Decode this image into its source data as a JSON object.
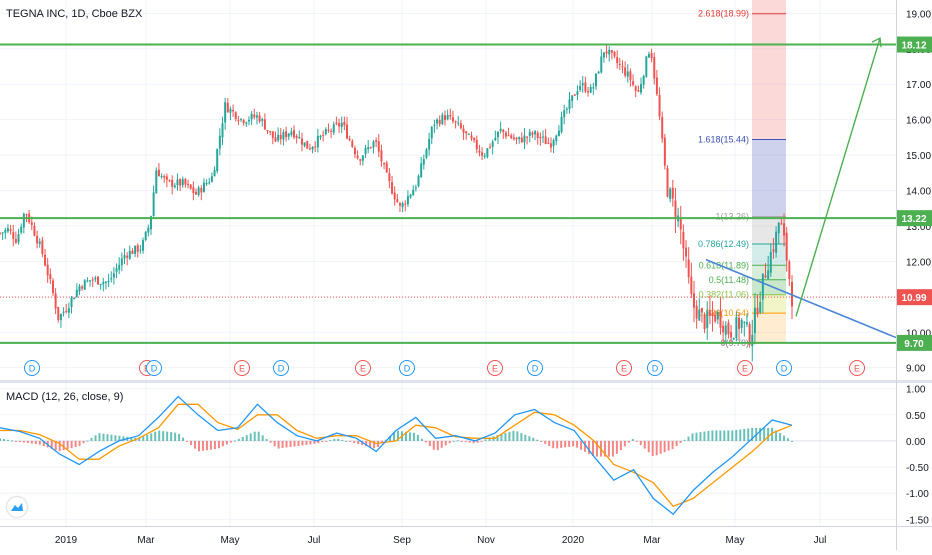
{
  "title": "TEGNA INC, 1D, Cboe BZX",
  "colors": {
    "up": "#26a69a",
    "down": "#ef5350",
    "level": "#4caf50",
    "price": "#ef5350",
    "trend": "#4a86d6",
    "macd": "#2196f3",
    "signal": "#ff9800",
    "fib_upper": "#e53935",
    "fib_618": "#3f51b5"
  },
  "icons": [
    "tradingview-logo-icon",
    "dividend-marker-icon",
    "earnings-marker-icon"
  ],
  "chart_data": [
    {
      "type": "candlestick",
      "title": "TEGNA INC, 1D, Cboe BZX",
      "x_ticks": [
        "2019",
        "Mar",
        "May",
        "Jul",
        "Sep",
        "Nov",
        "2020",
        "Mar",
        "May",
        "Jul"
      ],
      "y_ticks": [
        "9.00",
        "10.00",
        "11.00",
        "12.00",
        "13.00",
        "14.00",
        "15.00",
        "16.00",
        "17.00",
        "18.00",
        "19.00"
      ],
      "ylim": [
        8.85,
        19.25
      ],
      "grid": true,
      "horizontal_levels": [
        {
          "label": "18.12",
          "value": 18.12
        },
        {
          "label": "13.22",
          "value": 13.22
        },
        {
          "label": "9.70",
          "value": 9.7
        }
      ],
      "last_price": {
        "label": "10.99",
        "value": 10.99
      },
      "fib_levels": [
        {
          "label": "2.618(18.99)",
          "value": 18.99
        },
        {
          "label": "1.618(15.44)",
          "value": 15.44
        },
        {
          "label": "1(13.26)",
          "value": 13.26
        },
        {
          "label": "0.786(12.49)",
          "value": 12.49
        },
        {
          "label": "0.618(11.89)",
          "value": 11.89
        },
        {
          "label": "0.5(11.48)",
          "value": 11.48
        },
        {
          "label": "0.382(11.06)",
          "value": 11.06
        },
        {
          "label": "0.236(10.54)",
          "value": 10.54
        },
        {
          "label": "0(9.70)",
          "value": 9.7
        }
      ],
      "markers": [
        "D",
        "E",
        "D",
        "E",
        "D",
        "E",
        "D",
        "E",
        "D",
        "E",
        "D",
        "E",
        "D",
        "E"
      ],
      "price_path": [
        {
          "t": 0.0,
          "v": 12.8
        },
        {
          "t": 0.02,
          "v": 12.9
        },
        {
          "t": 0.04,
          "v": 12.6
        },
        {
          "t": 0.06,
          "v": 13.45
        },
        {
          "t": 0.08,
          "v": 12.9
        },
        {
          "t": 0.1,
          "v": 12.3
        },
        {
          "t": 0.125,
          "v": 11.2
        },
        {
          "t": 0.14,
          "v": 10.4
        },
        {
          "t": 0.16,
          "v": 10.7
        },
        {
          "t": 0.19,
          "v": 11.3
        },
        {
          "t": 0.22,
          "v": 11.5
        },
        {
          "t": 0.26,
          "v": 11.4
        },
        {
          "t": 0.3,
          "v": 12.2
        },
        {
          "t": 0.34,
          "v": 12.4
        },
        {
          "t": 0.36,
          "v": 13.1
        },
        {
          "t": 0.375,
          "v": 14.6
        },
        {
          "t": 0.4,
          "v": 14.2
        },
        {
          "t": 0.44,
          "v": 14.2
        },
        {
          "t": 0.47,
          "v": 13.9
        },
        {
          "t": 0.51,
          "v": 14.4
        },
        {
          "t": 0.54,
          "v": 16.4
        },
        {
          "t": 0.58,
          "v": 16.0
        },
        {
          "t": 0.62,
          "v": 16.1
        },
        {
          "t": 0.66,
          "v": 15.4
        },
        {
          "t": 0.7,
          "v": 15.7
        },
        {
          "t": 0.74,
          "v": 15.2
        },
        {
          "t": 0.78,
          "v": 15.6
        },
        {
          "t": 0.82,
          "v": 15.9
        },
        {
          "t": 0.86,
          "v": 14.9
        },
        {
          "t": 0.9,
          "v": 15.4
        },
        {
          "t": 0.93,
          "v": 14.3
        },
        {
          "t": 0.96,
          "v": 13.5
        },
        {
          "t": 1.0,
          "v": 14.2
        },
        {
          "t": 1.04,
          "v": 15.9
        },
        {
          "t": 1.07,
          "v": 16.1
        },
        {
          "t": 1.1,
          "v": 15.8
        },
        {
          "t": 1.13,
          "v": 15.4
        },
        {
          "t": 1.16,
          "v": 15.0
        },
        {
          "t": 1.2,
          "v": 15.7
        },
        {
          "t": 1.24,
          "v": 15.4
        },
        {
          "t": 1.28,
          "v": 15.6
        },
        {
          "t": 1.32,
          "v": 15.3
        },
        {
          "t": 1.36,
          "v": 16.3
        },
        {
          "t": 1.39,
          "v": 17.0
        },
        {
          "t": 1.42,
          "v": 16.8
        },
        {
          "t": 1.45,
          "v": 18.0
        },
        {
          "t": 1.48,
          "v": 17.6
        },
        {
          "t": 1.51,
          "v": 17.2
        },
        {
          "t": 1.53,
          "v": 16.7
        },
        {
          "t": 1.56,
          "v": 18.1
        },
        {
          "t": 1.58,
          "v": 16.3
        },
        {
          "t": 1.6,
          "v": 14.1
        },
        {
          "t": 1.63,
          "v": 13.1
        },
        {
          "t": 1.66,
          "v": 10.8
        },
        {
          "t": 1.69,
          "v": 10.3
        },
        {
          "t": 1.72,
          "v": 10.5
        },
        {
          "t": 1.75,
          "v": 10.0
        },
        {
          "t": 1.78,
          "v": 10.3
        },
        {
          "t": 1.8,
          "v": 9.85
        },
        {
          "t": 1.82,
          "v": 10.9
        },
        {
          "t": 1.84,
          "v": 11.9
        },
        {
          "t": 1.86,
          "v": 12.6
        },
        {
          "t": 1.87,
          "v": 13.2
        },
        {
          "t": 1.885,
          "v": 12.3
        },
        {
          "t": 1.9,
          "v": 10.99
        }
      ]
    },
    {
      "type": "line",
      "title": "MACD (12, 26, close, 9)",
      "y_ticks": [
        "1.00",
        "0.50",
        "0.00",
        "-0.50",
        "-1.00",
        "-1.50"
      ],
      "ylim": [
        -1.55,
        1.05
      ],
      "series": [
        {
          "name": "MACD",
          "values": [
            0.25,
            0.18,
            0.05,
            -0.25,
            -0.45,
            -0.2,
            0.0,
            0.1,
            0.45,
            0.85,
            0.5,
            0.2,
            0.25,
            0.7,
            0.35,
            0.1,
            0.0,
            0.15,
            0.05,
            -0.2,
            0.2,
            0.45,
            0.05,
            0.1,
            0.0,
            0.15,
            0.5,
            0.6,
            0.35,
            0.2,
            -0.3,
            -0.75,
            -0.55,
            -1.1,
            -1.4,
            -0.95,
            -0.6,
            -0.3,
            0.05,
            0.4,
            0.3
          ]
        },
        {
          "name": "Signal",
          "values": [
            0.2,
            0.2,
            0.12,
            -0.05,
            -0.35,
            -0.35,
            -0.1,
            0.05,
            0.25,
            0.7,
            0.7,
            0.35,
            0.22,
            0.5,
            0.5,
            0.2,
            0.05,
            0.1,
            0.1,
            -0.05,
            0.0,
            0.3,
            0.25,
            0.08,
            0.05,
            0.05,
            0.3,
            0.55,
            0.5,
            0.3,
            0.0,
            -0.45,
            -0.6,
            -0.8,
            -1.25,
            -1.1,
            -0.8,
            -0.5,
            -0.2,
            0.15,
            0.3
          ]
        }
      ]
    }
  ]
}
